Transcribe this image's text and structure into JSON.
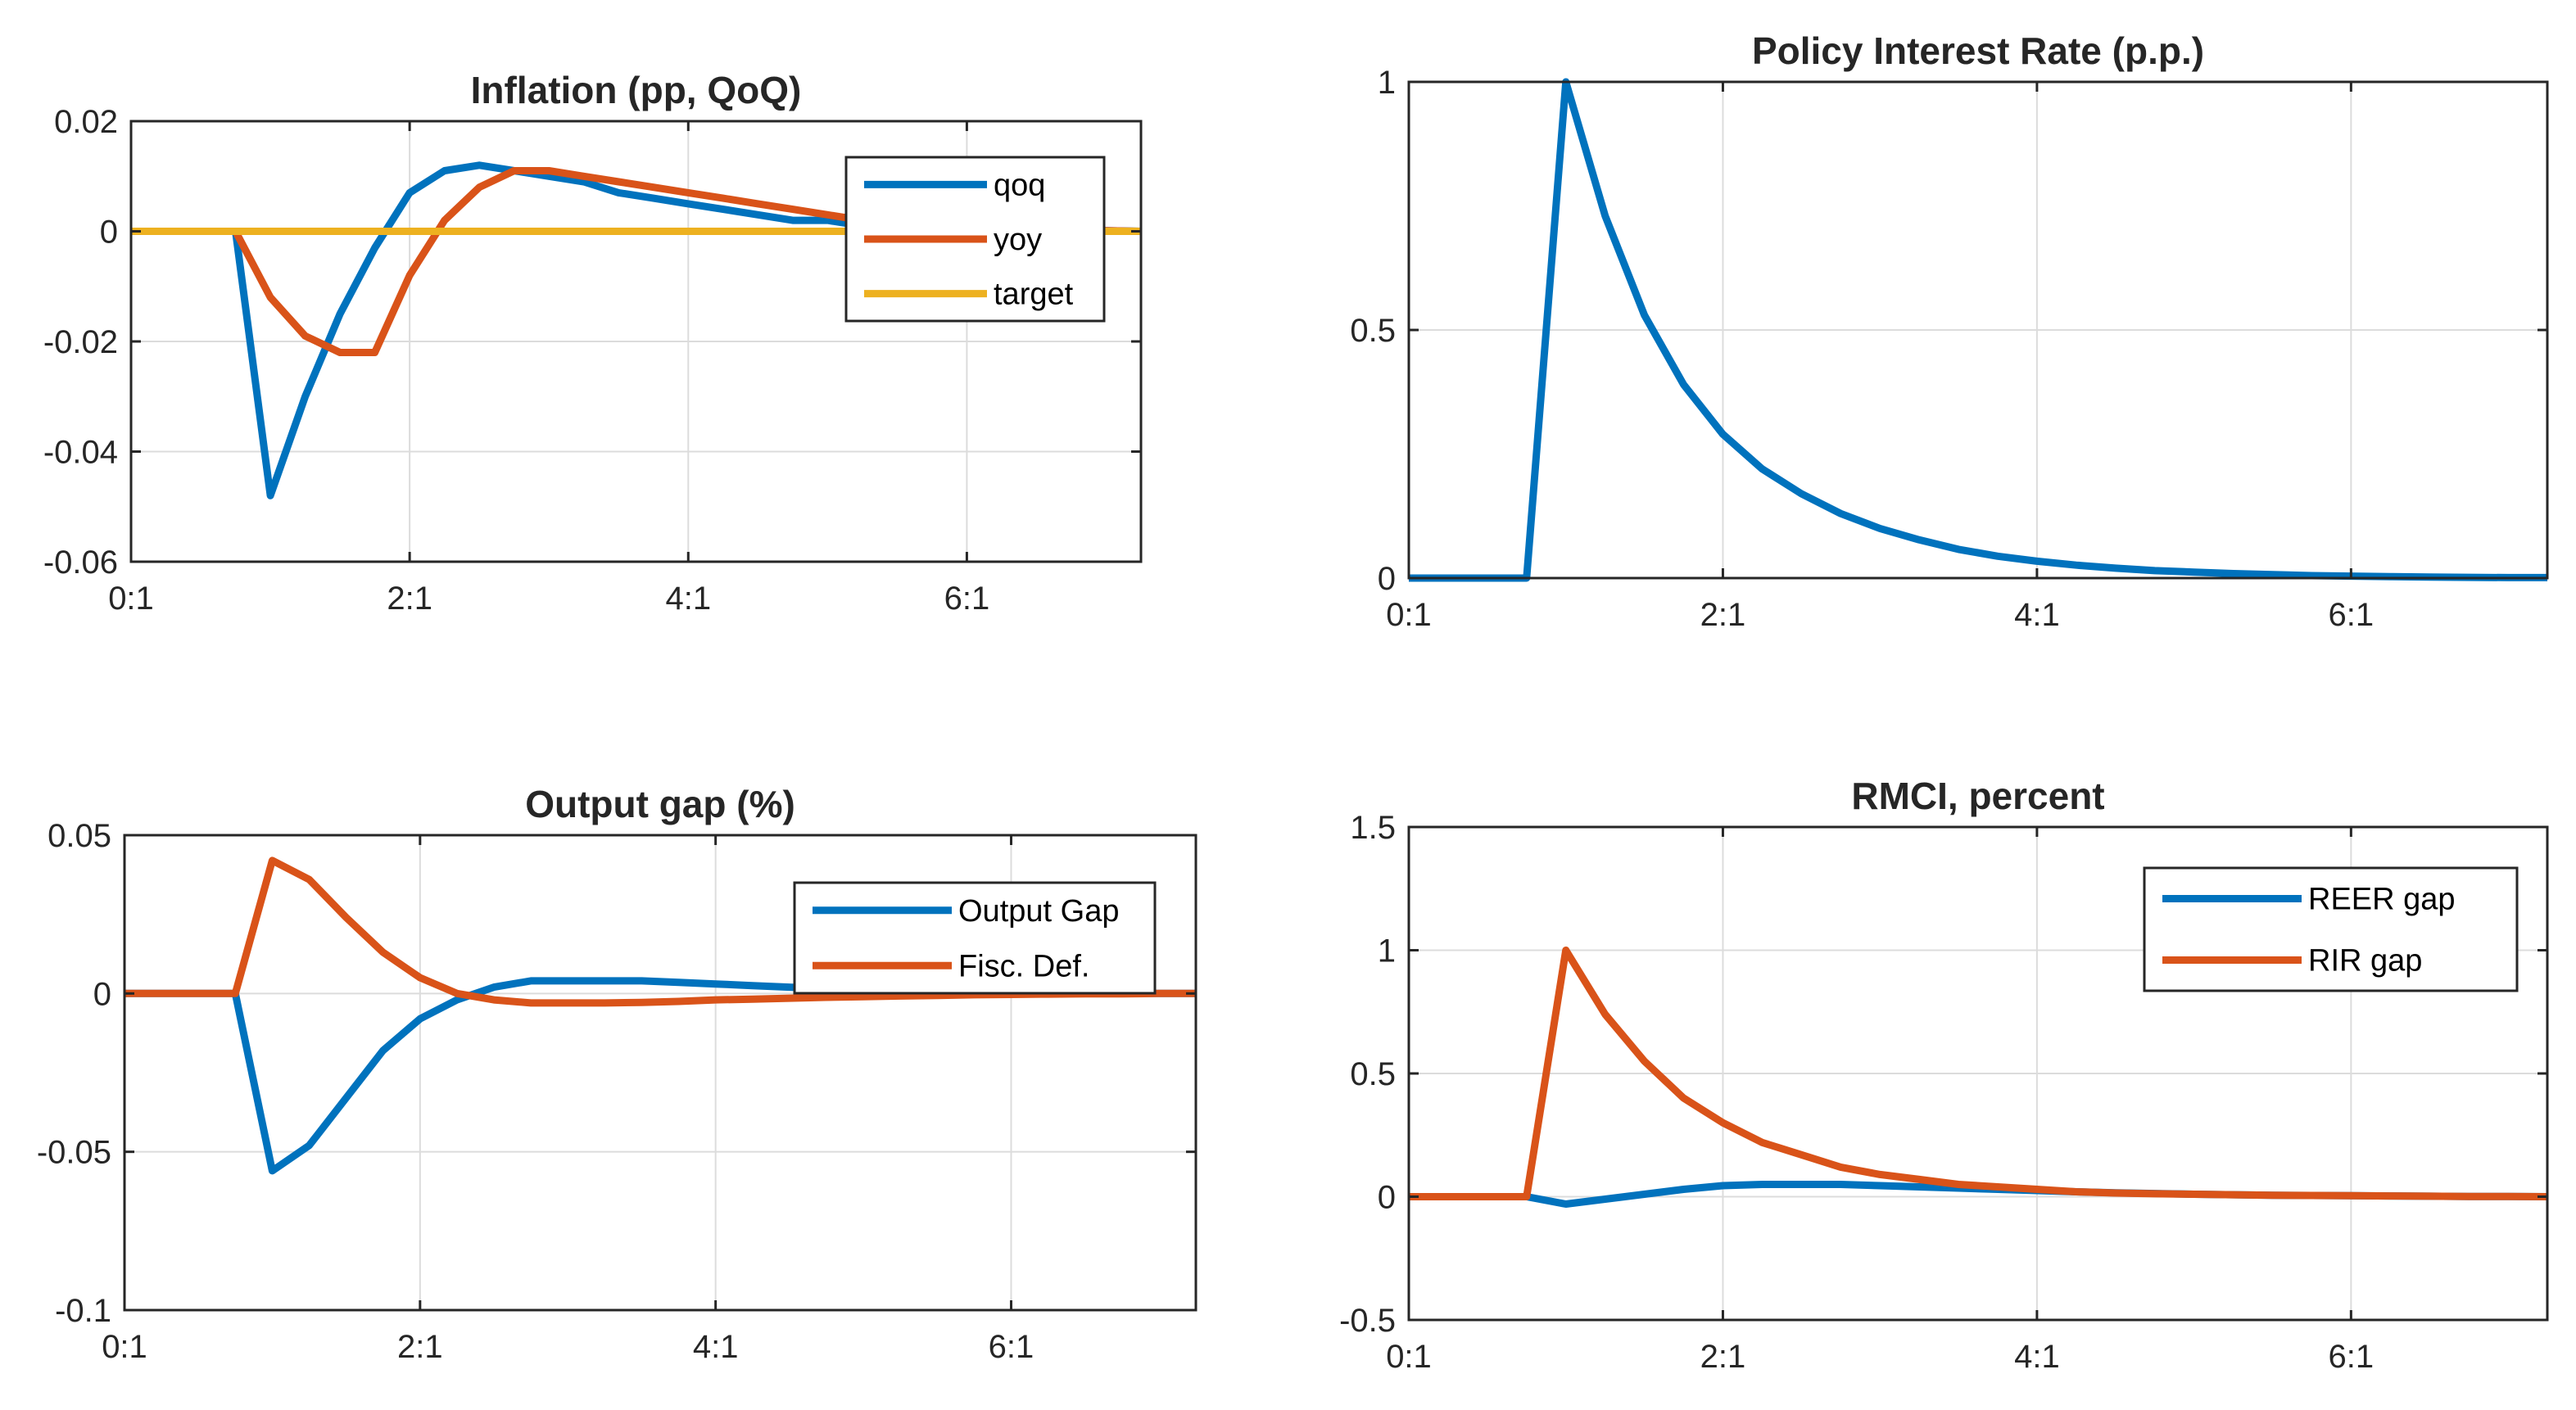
{
  "chart_data": [
    {
      "type": "line",
      "title": "Inflation (pp, QoQ)",
      "xlabel": "",
      "ylabel": "",
      "xlim": [
        0,
        29
      ],
      "ylim": [
        -0.06,
        0.02
      ],
      "xticks": [
        0,
        8,
        16,
        24
      ],
      "xtick_labels": [
        "0:1",
        "2:1",
        "4:1",
        "6:1"
      ],
      "yticks": [
        -0.06,
        -0.04,
        -0.02,
        0,
        0.02
      ],
      "ytick_labels": [
        "-0.06",
        "-0.04",
        "-0.02",
        "0",
        "0.02"
      ],
      "grid": true,
      "legend_position": "top-right",
      "series": [
        {
          "name": "qoq",
          "color": "#0072BD",
          "x": [
            0,
            1,
            2,
            3,
            4,
            5,
            6,
            7,
            8,
            9,
            10,
            11,
            12,
            13,
            14,
            15,
            16,
            17,
            18,
            19,
            20,
            21,
            22,
            23,
            24,
            25,
            26,
            27,
            28,
            29
          ],
          "y": [
            0,
            0,
            0,
            0,
            -0.048,
            -0.03,
            -0.015,
            -0.003,
            0.007,
            0.011,
            0.012,
            0.011,
            0.01,
            0.009,
            0.007,
            0.006,
            0.005,
            0.004,
            0.003,
            0.002,
            0.002,
            0.001,
            0.001,
            0.0008,
            0.0005,
            0.0003,
            0.0002,
            0.0001,
            0.0001,
            0
          ]
        },
        {
          "name": "yoy",
          "color": "#D95319",
          "x": [
            0,
            1,
            2,
            3,
            4,
            5,
            6,
            7,
            8,
            9,
            10,
            11,
            12,
            13,
            14,
            15,
            16,
            17,
            18,
            19,
            20,
            21,
            22,
            23,
            24,
            25,
            26,
            27,
            28,
            29
          ],
          "y": [
            0,
            0,
            0,
            0,
            -0.012,
            -0.019,
            -0.022,
            -0.022,
            -0.008,
            0.002,
            0.008,
            0.011,
            0.011,
            0.01,
            0.009,
            0.008,
            0.007,
            0.006,
            0.005,
            0.004,
            0.003,
            0.002,
            0.002,
            0.001,
            0.001,
            0.0007,
            0.0004,
            0.0002,
            0.0001,
            0
          ]
        },
        {
          "name": "target",
          "color": "#EDB120",
          "x": [
            0,
            29
          ],
          "y": [
            0,
            0
          ]
        }
      ]
    },
    {
      "type": "line",
      "title": "Policy Interest Rate (p.p.)",
      "xlabel": "",
      "ylabel": "",
      "xlim": [
        0,
        29
      ],
      "ylim": [
        0,
        1
      ],
      "xticks": [
        0,
        8,
        16,
        24
      ],
      "xtick_labels": [
        "0:1",
        "2:1",
        "4:1",
        "6:1"
      ],
      "yticks": [
        0,
        0.5,
        1
      ],
      "ytick_labels": [
        "0",
        "0.5",
        "1"
      ],
      "grid": true,
      "series": [
        {
          "name": "Policy Interest Rate",
          "color": "#0072BD",
          "x": [
            0,
            1,
            2,
            3,
            4,
            5,
            6,
            7,
            8,
            9,
            10,
            11,
            12,
            13,
            14,
            15,
            16,
            17,
            18,
            19,
            20,
            21,
            22,
            23,
            24,
            25,
            26,
            27,
            28,
            29
          ],
          "y": [
            0,
            0,
            0,
            0,
            1,
            0.73,
            0.53,
            0.39,
            0.29,
            0.22,
            0.17,
            0.13,
            0.1,
            0.077,
            0.058,
            0.044,
            0.034,
            0.026,
            0.02,
            0.015,
            0.012,
            0.009,
            0.007,
            0.005,
            0.004,
            0.003,
            0.002,
            0.0015,
            0.001,
            0.001
          ]
        }
      ]
    },
    {
      "type": "line",
      "title": "Output gap (%)",
      "xlabel": "",
      "ylabel": "",
      "xlim": [
        0,
        29
      ],
      "ylim": [
        -0.1,
        0.05
      ],
      "xticks": [
        0,
        8,
        16,
        24
      ],
      "xtick_labels": [
        "0:1",
        "2:1",
        "4:1",
        "6:1"
      ],
      "yticks": [
        -0.1,
        -0.05,
        0,
        0.05
      ],
      "ytick_labels": [
        "-0.1",
        "-0.05",
        "0",
        "0.05"
      ],
      "grid": true,
      "legend_position": "top-right",
      "series": [
        {
          "name": "Output Gap",
          "color": "#0072BD",
          "x": [
            0,
            1,
            2,
            3,
            4,
            5,
            6,
            7,
            8,
            9,
            10,
            11,
            12,
            13,
            14,
            15,
            16,
            17,
            18,
            19,
            20,
            21,
            22,
            23,
            24,
            25,
            26,
            27,
            28,
            29
          ],
          "y": [
            0,
            0,
            0,
            0,
            -0.056,
            -0.048,
            -0.033,
            -0.018,
            -0.008,
            -0.002,
            0.002,
            0.004,
            0.004,
            0.004,
            0.004,
            0.0035,
            0.003,
            0.0025,
            0.002,
            0.0015,
            0.001,
            0.0008,
            0.0005,
            0.0003,
            0.0002,
            0.0001,
            0.0001,
            0,
            0,
            0
          ]
        },
        {
          "name": "Fisc. Def.",
          "color": "#D95319",
          "x": [
            0,
            1,
            2,
            3,
            4,
            5,
            6,
            7,
            8,
            9,
            10,
            11,
            12,
            13,
            14,
            15,
            16,
            17,
            18,
            19,
            20,
            21,
            22,
            23,
            24,
            25,
            26,
            27,
            28,
            29
          ],
          "y": [
            0,
            0,
            0,
            0,
            0.042,
            0.036,
            0.024,
            0.013,
            0.005,
            0,
            -0.002,
            -0.003,
            -0.003,
            -0.003,
            -0.0028,
            -0.0025,
            -0.002,
            -0.0018,
            -0.0015,
            -0.0012,
            -0.001,
            -0.0008,
            -0.0006,
            -0.0004,
            -0.0003,
            -0.0002,
            -0.0001,
            -0.0001,
            0,
            0
          ]
        }
      ]
    },
    {
      "type": "line",
      "title": "RMCI, percent",
      "xlabel": "",
      "ylabel": "",
      "xlim": [
        0,
        29
      ],
      "ylim": [
        -0.5,
        1.5
      ],
      "xticks": [
        0,
        8,
        16,
        24
      ],
      "xtick_labels": [
        "0:1",
        "2:1",
        "4:1",
        "6:1"
      ],
      "yticks": [
        -0.5,
        0,
        0.5,
        1,
        1.5
      ],
      "ytick_labels": [
        "-0.5",
        "0",
        "0.5",
        "1",
        "1.5"
      ],
      "grid": true,
      "legend_position": "top-right",
      "series": [
        {
          "name": "REER gap",
          "color": "#0072BD",
          "x": [
            0,
            1,
            2,
            3,
            4,
            5,
            6,
            7,
            8,
            9,
            10,
            11,
            12,
            13,
            14,
            15,
            16,
            17,
            18,
            19,
            20,
            21,
            22,
            23,
            24,
            25,
            26,
            27,
            28,
            29
          ],
          "y": [
            0,
            0,
            0,
            0,
            -0.03,
            -0.01,
            0.01,
            0.03,
            0.045,
            0.05,
            0.05,
            0.05,
            0.045,
            0.04,
            0.035,
            0.03,
            0.025,
            0.02,
            0.016,
            0.013,
            0.01,
            0.008,
            0.006,
            0.005,
            0.004,
            0.003,
            0.002,
            0.001,
            0.001,
            0
          ]
        },
        {
          "name": "RIR gap",
          "color": "#D95319",
          "x": [
            0,
            1,
            2,
            3,
            4,
            5,
            6,
            7,
            8,
            9,
            10,
            11,
            12,
            13,
            14,
            15,
            16,
            17,
            18,
            19,
            20,
            21,
            22,
            23,
            24,
            25,
            26,
            27,
            28,
            29
          ],
          "y": [
            0,
            0,
            0,
            0,
            1.0,
            0.74,
            0.55,
            0.4,
            0.3,
            0.22,
            0.17,
            0.12,
            0.09,
            0.07,
            0.05,
            0.04,
            0.03,
            0.02,
            0.015,
            0.012,
            0.01,
            0.008,
            0.006,
            0.005,
            0.004,
            0.003,
            0.002,
            0.001,
            0.001,
            0
          ]
        }
      ]
    }
  ]
}
